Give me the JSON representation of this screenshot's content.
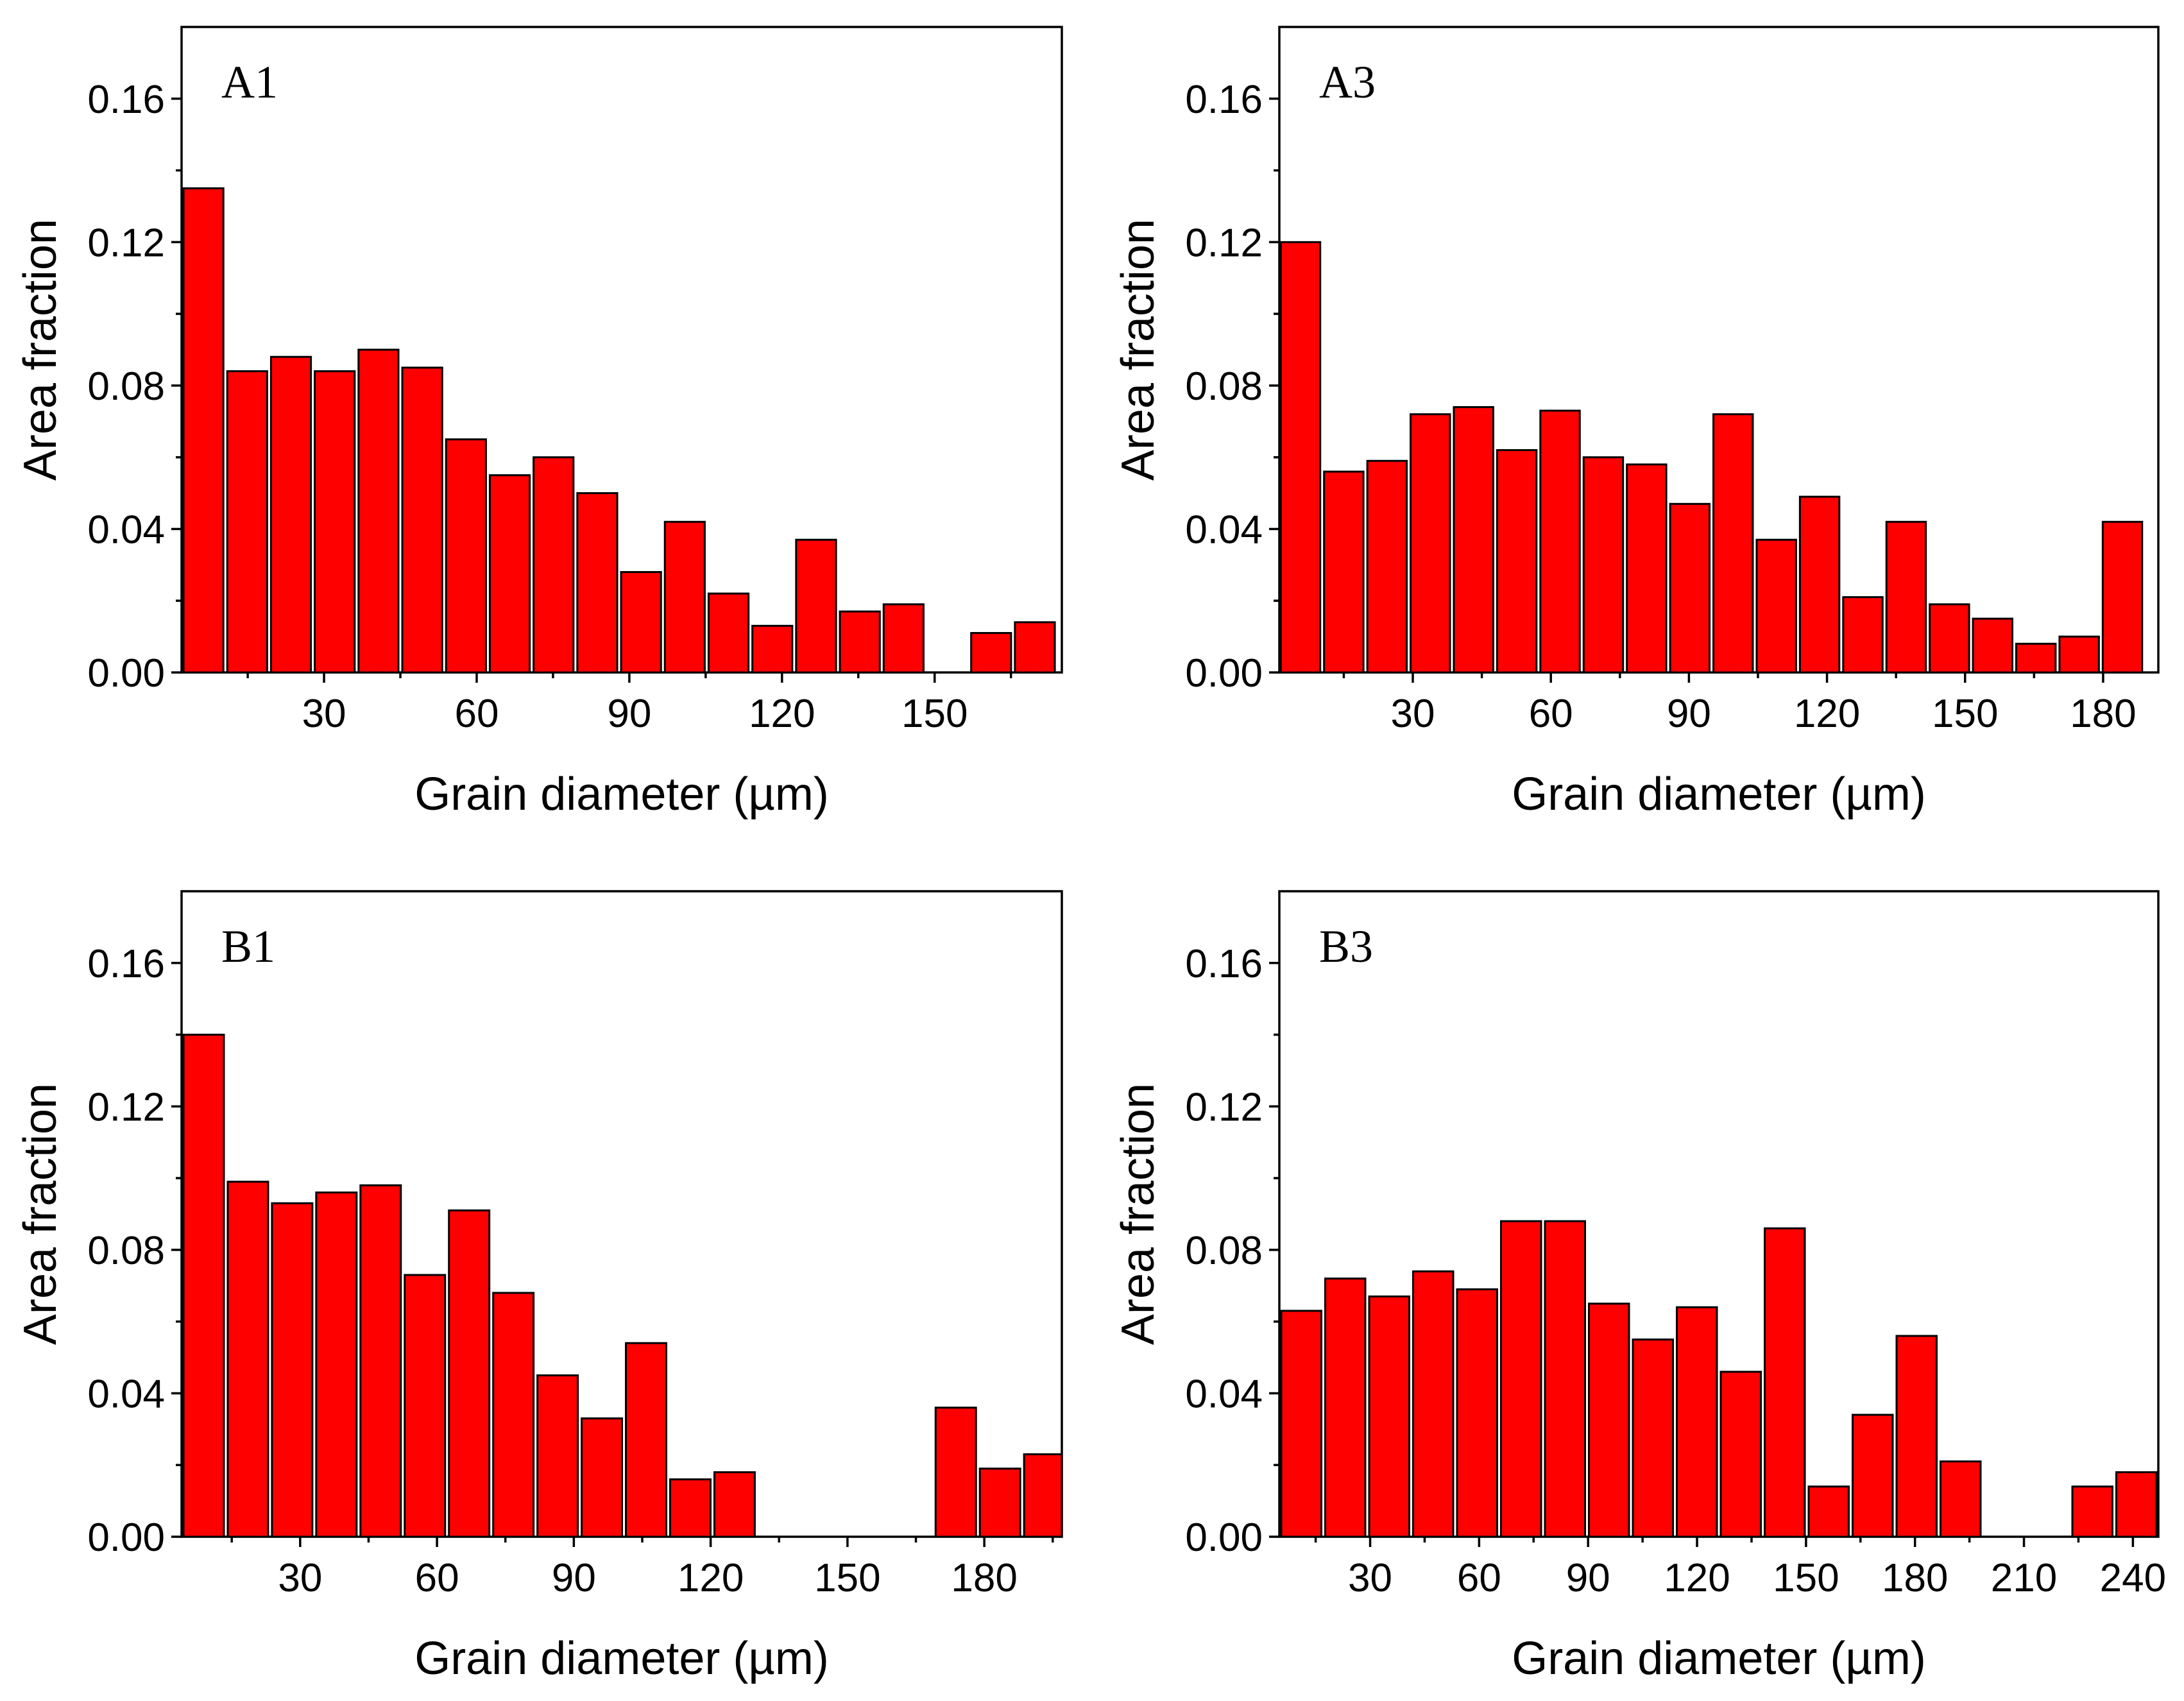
{
  "chart_data": [
    {
      "type": "bar",
      "panel": "A1",
      "xlabel": "Grain diameter (µm)",
      "ylabel": "Area fraction",
      "xlim": [
        2,
        175
      ],
      "ylim": [
        0,
        0.18
      ],
      "xticks": [
        "30",
        "60",
        "90",
        "120",
        "150"
      ],
      "yticks": [
        "0.00",
        "0.04",
        "0.08",
        "0.12",
        "0.16"
      ],
      "bin_width": 8.6,
      "x": [
        6.3,
        14.9,
        23.5,
        32.1,
        40.7,
        49.3,
        57.9,
        66.5,
        75.1,
        83.7,
        92.3,
        100.9,
        109.5,
        118.1,
        126.7,
        135.3,
        143.9,
        152.5,
        161.1,
        169.7
      ],
      "values": [
        0.135,
        0.084,
        0.088,
        0.084,
        0.09,
        0.085,
        0.065,
        0.055,
        0.06,
        0.05,
        0.028,
        0.042,
        0.022,
        0.013,
        0.037,
        0.017,
        0.019,
        0.0,
        0.011,
        0.014
      ]
    },
    {
      "type": "bar",
      "panel": "A3",
      "xlabel": "Grain diameter (µm)",
      "ylabel": "Area fraction",
      "xlim": [
        1,
        192
      ],
      "ylim": [
        0,
        0.18
      ],
      "xticks": [
        "30",
        "60",
        "90",
        "120",
        "150",
        "180"
      ],
      "yticks": [
        "0.00",
        "0.04",
        "0.08",
        "0.12",
        "0.16"
      ],
      "bin_width": 9.4,
      "x": [
        5.6,
        15.0,
        24.4,
        33.8,
        43.2,
        52.6,
        62.0,
        71.4,
        80.8,
        90.2,
        99.6,
        109.0,
        118.4,
        127.8,
        137.2,
        146.6,
        156.0,
        165.4,
        174.8,
        184.2
      ],
      "values": [
        0.12,
        0.056,
        0.059,
        0.072,
        0.074,
        0.062,
        0.073,
        0.06,
        0.058,
        0.047,
        0.072,
        0.037,
        0.049,
        0.021,
        0.042,
        0.019,
        0.015,
        0.008,
        0.01,
        0.042
      ]
    },
    {
      "type": "bar",
      "panel": "B1",
      "xlabel": "Grain diameter (µm)",
      "ylabel": "Area fraction",
      "xlim": [
        4,
        197
      ],
      "ylim": [
        0,
        0.18
      ],
      "xticks": [
        "30",
        "60",
        "90",
        "120",
        "150",
        "180"
      ],
      "yticks": [
        "0.00",
        "0.04",
        "0.08",
        "0.12",
        "0.16"
      ],
      "bin_width": 9.7,
      "x": [
        8.85,
        18.55,
        28.25,
        37.95,
        47.65,
        57.35,
        67.05,
        76.75,
        86.45,
        96.15,
        105.85,
        115.55,
        125.25,
        134.95,
        144.65,
        154.35,
        164.05,
        173.75,
        183.45,
        193.15
      ],
      "values": [
        0.14,
        0.099,
        0.093,
        0.096,
        0.098,
        0.073,
        0.091,
        0.068,
        0.045,
        0.033,
        0.054,
        0.016,
        0.018,
        0.0,
        0.0,
        0.0,
        0.0,
        0.036,
        0.019,
        0.023
      ]
    },
    {
      "type": "bar",
      "panel": "B3",
      "xlabel": "Grain diameter (µm)",
      "ylabel": "Area fraction",
      "xlim": [
        5,
        247
      ],
      "ylim": [
        0,
        0.18
      ],
      "xticks": [
        "30",
        "60",
        "90",
        "120",
        "150",
        "180",
        "210",
        "240"
      ],
      "yticks": [
        "0.00",
        "0.04",
        "0.08",
        "0.12",
        "0.16"
      ],
      "bin_width": 12.1,
      "x": [
        11.05,
        23.15,
        35.25,
        47.35,
        59.45,
        71.55,
        83.65,
        95.75,
        107.85,
        119.95,
        132.05,
        144.15,
        156.25,
        168.35,
        180.45,
        192.55,
        204.65,
        216.75,
        228.85,
        240.95
      ],
      "values": [
        0.063,
        0.072,
        0.067,
        0.074,
        0.069,
        0.088,
        0.088,
        0.065,
        0.055,
        0.064,
        0.046,
        0.086,
        0.014,
        0.034,
        0.056,
        0.021,
        0.0,
        0.0,
        0.014,
        0.018
      ]
    }
  ]
}
